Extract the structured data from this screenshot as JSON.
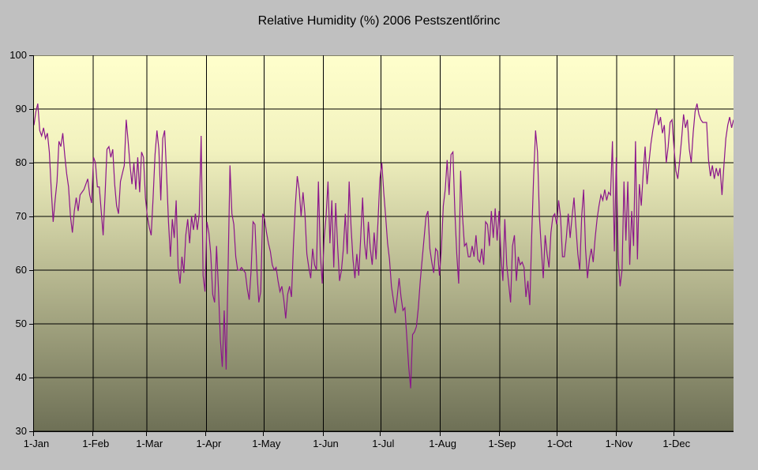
{
  "window": {
    "outer_background": "#C0C0C0"
  },
  "chart_data": {
    "type": "line",
    "title": "Relative Humidity (%) 2006 Pestszentlőrinc",
    "xlabel": "",
    "ylabel": "",
    "x_tick_labels": [
      "1-Jan",
      "1-Feb",
      "1-Mar",
      "1-Apr",
      "1-May",
      "1-Jun",
      "1-Jul",
      "1-Aug",
      "1-Sep",
      "1-Oct",
      "1-Nov",
      "1-Dec"
    ],
    "month_start_days": [
      0,
      31,
      59,
      90,
      120,
      151,
      181,
      212,
      243,
      273,
      304,
      334
    ],
    "days_in_year": 365,
    "y_ticks": [
      100,
      90,
      80,
      70,
      60,
      50,
      40,
      30
    ],
    "ylim": [
      30,
      100
    ],
    "grid": true,
    "legend_position": "none",
    "colors": {
      "line": "#8B158B",
      "grid": "#000000",
      "axis": "#000000",
      "text": "#000000",
      "plot_bg_top": "#FFFFCC",
      "plot_bg_bottom": "#6E7056",
      "outer_bg": "#C0C0C0"
    },
    "series": [
      {
        "name": "Relative Humidity",
        "unit": "%",
        "daily_values": [
          87,
          89.5,
          91,
          86,
          85,
          86.5,
          84.5,
          85.5,
          82,
          75,
          69,
          73,
          76.5,
          84,
          83,
          85.5,
          81.5,
          78,
          75.5,
          70,
          67,
          71,
          73.5,
          71,
          74,
          74.5,
          75,
          76,
          77,
          74,
          72.5,
          81,
          80,
          75.5,
          75.5,
          71,
          66.5,
          74,
          82.5,
          83,
          81,
          82.5,
          76,
          72,
          70.5,
          76.5,
          78,
          79.5,
          88,
          84,
          79.5,
          76,
          80,
          75,
          81,
          74.5,
          82,
          81,
          73.5,
          70,
          68,
          66.5,
          73.5,
          81.5,
          86,
          82.5,
          73,
          84.5,
          86,
          78,
          69,
          62.5,
          69.5,
          66,
          73,
          60.5,
          57.5,
          62.5,
          59.5,
          66.5,
          69.5,
          65,
          70,
          67.5,
          70.5,
          67.5,
          70.5,
          85,
          59,
          56,
          69,
          67,
          63,
          55.5,
          54,
          64.5,
          56.5,
          47,
          42,
          52.5,
          41.5,
          60,
          79.5,
          70.5,
          68.5,
          62.5,
          60,
          60,
          60.5,
          60,
          59.5,
          56.5,
          54.5,
          60,
          69,
          68.5,
          60,
          54,
          56,
          70.5,
          69.5,
          67,
          65,
          63.5,
          61,
          60,
          60.5,
          58,
          56,
          57,
          54.5,
          51,
          55.5,
          57,
          55,
          64.5,
          72,
          77.5,
          75,
          70,
          74.5,
          70.5,
          63,
          60.5,
          58.5,
          64,
          61,
          60,
          76.5,
          63,
          57.5,
          66,
          70,
          76.5,
          65,
          73,
          60.5,
          72.5,
          64.5,
          58,
          60,
          64,
          70.5,
          63,
          76.5,
          68,
          62,
          58.5,
          63,
          59,
          66,
          73.5,
          65,
          62,
          69,
          64,
          61,
          67,
          62,
          69,
          77,
          80,
          74.5,
          70,
          65,
          62,
          57,
          54.5,
          52,
          55,
          58.5,
          55,
          52.5,
          53,
          47.5,
          42,
          38,
          48,
          48.5,
          49.5,
          53,
          58,
          62,
          66,
          70,
          71,
          64,
          61.5,
          59.5,
          64,
          63.5,
          59,
          64,
          72,
          75,
          80.5,
          74,
          81.5,
          82,
          71,
          63,
          57.5,
          78.5,
          70,
          64.5,
          65,
          62.5,
          62.5,
          64.5,
          62.5,
          66.5,
          62,
          61.5,
          64,
          61,
          69,
          68.5,
          64.5,
          71,
          66,
          71.5,
          65.5,
          71,
          62.5,
          58,
          69.5,
          61,
          57.5,
          54,
          64.5,
          66.5,
          58,
          62.5,
          61,
          61.5,
          60.5,
          55,
          58,
          53.5,
          66.5,
          77.5,
          86,
          82,
          70,
          64,
          58.5,
          66.5,
          63,
          60.5,
          67,
          70,
          70.5,
          68.5,
          73,
          70,
          62.5,
          62.5,
          66,
          70.5,
          66,
          70,
          73.5,
          68,
          63,
          60,
          70,
          75,
          64,
          58.5,
          62,
          64,
          61.5,
          66,
          69.5,
          72,
          74,
          73,
          75,
          73,
          74.5,
          74,
          84,
          63.5,
          81,
          62,
          57,
          60,
          76.5,
          65.5,
          76.5,
          61,
          71,
          64.5,
          84,
          62,
          76,
          72,
          78,
          83,
          76,
          80,
          83.5,
          86,
          88,
          90,
          87,
          88.5,
          85.5,
          87,
          80,
          83,
          87.5,
          88,
          83,
          78.5,
          77,
          80.5,
          84.5,
          89,
          86.5,
          88,
          82.5,
          80,
          85.5,
          89.5,
          91,
          89,
          88,
          87.5,
          87.5,
          87.5,
          80.5,
          77.5,
          79.5,
          77,
          79,
          77.5,
          79,
          74,
          79.5,
          84.5,
          87,
          88.5,
          86.5,
          88
        ]
      }
    ]
  }
}
